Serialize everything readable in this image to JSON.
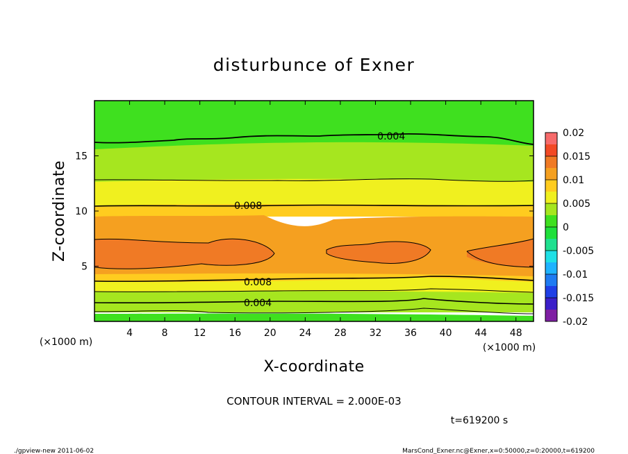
{
  "chart_data": {
    "type": "contour",
    "title": "disturbunce of Exner",
    "xlabel": "X-coordinate",
    "ylabel": "Z-coordinate",
    "x_unit": "(×1000 m)",
    "y_unit": "(×1000 m)",
    "xlim": [
      0,
      50
    ],
    "ylim": [
      0,
      20
    ],
    "x_ticks": [
      4,
      8,
      12,
      16,
      20,
      24,
      28,
      32,
      36,
      40,
      44,
      48
    ],
    "y_ticks": [
      5,
      10,
      15
    ],
    "colorbar": {
      "ticks": [
        "0.02",
        "0.015",
        "0.01",
        "0.005",
        "0",
        "-0.005",
        "-0.01",
        "-0.015",
        "-0.02"
      ],
      "range": [
        -0.02,
        0.02
      ],
      "step": 0.0025,
      "colors": [
        "#7f1fa3",
        "#3b1fc9",
        "#1f3fe6",
        "#1f7bf2",
        "#1fb3ff",
        "#1fe0e6",
        "#1fe08f",
        "#1fe03b",
        "#3fe01f",
        "#a6e61f",
        "#f0f01f",
        "#ffcc1f",
        "#f5a020",
        "#f07a25",
        "#f24a25",
        "#f76b6b",
        "#fa9e9e"
      ]
    },
    "contour_labels": [
      {
        "value": "0.004",
        "x": 33.8,
        "z": 16.8
      },
      {
        "value": "0.008",
        "x": 17.5,
        "z": 10.5
      },
      {
        "value": "0.008",
        "x": 18.6,
        "z": 3.6
      },
      {
        "value": "0.004",
        "x": 18.6,
        "z": 1.7
      }
    ],
    "contour_interval": "CONTOUR INTERVAL = 2.000E-03",
    "time": "t=619200 s",
    "footer_left": "./gpview-new   2011-06-02",
    "footer_right": "MarsCond_Exner.nc@Exner,x=0:50000,z=0:20000,t=619200"
  }
}
